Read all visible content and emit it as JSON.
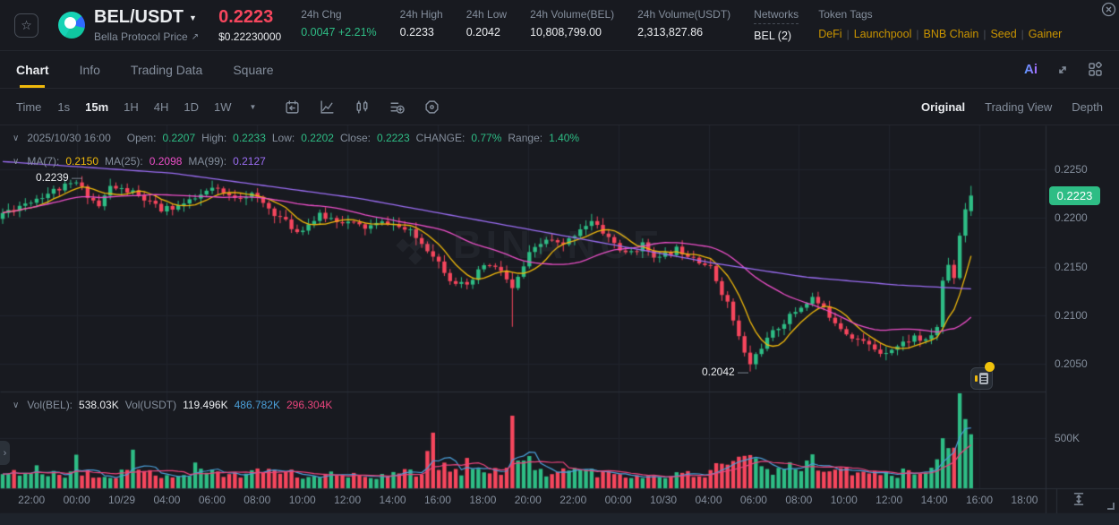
{
  "header": {
    "symbol": "BEL/USDT",
    "subtitle": "Bella Protocol Price",
    "subtitle_arrow": "↗",
    "price": "0.2223",
    "price_usd": "$0.22230000",
    "stats": [
      {
        "label": "24h Chg",
        "value": "0.0047 +2.21%",
        "color": "green"
      },
      {
        "label": "24h High",
        "value": "0.2233"
      },
      {
        "label": "24h Low",
        "value": "0.2042"
      },
      {
        "label": "24h Volume(BEL)",
        "value": "10,808,799.00"
      },
      {
        "label": "24h Volume(USDT)",
        "value": "2,313,827.86"
      },
      {
        "label": "Networks",
        "value": "BEL (2)",
        "dashed": true
      }
    ],
    "token_tags": {
      "label": "Token Tags",
      "tags": [
        "DeFi",
        "Launchpool",
        "BNB Chain",
        "Seed",
        "Gainer"
      ]
    }
  },
  "tabs": {
    "items": [
      "Chart",
      "Info",
      "Trading Data",
      "Square"
    ],
    "active": "Chart",
    "ai_label": "Ai"
  },
  "toolbar": {
    "time_label": "Time",
    "intervals": [
      "1s",
      "15m",
      "1H",
      "4H",
      "1D",
      "1W"
    ],
    "active_interval": "15m",
    "modes": [
      "Original",
      "Trading View",
      "Depth"
    ],
    "active_mode": "Original"
  },
  "ohlc_bar": {
    "date": "2025/10/30 16:00",
    "open_label": "Open:",
    "open": "0.2207",
    "high_label": "High:",
    "high": "0.2233",
    "low_label": "Low:",
    "low": "0.2202",
    "close_label": "Close:",
    "close": "0.2223",
    "change_label": "CHANGE:",
    "change": "0.77%",
    "range_label": "Range:",
    "range": "1.40%"
  },
  "ma_bar": {
    "ma7_label": "MA(7):",
    "ma7_value": "0.2150",
    "ma25_label": "MA(25):",
    "ma25_value": "0.2098",
    "ma99_label": "MA(99):",
    "ma99_value": "0.2127"
  },
  "vol_bar": {
    "bel_label": "Vol(BEL):",
    "bel_value": "538.03K",
    "usdt_label": "Vol(USDT)",
    "usdt_value": "119.496K",
    "ma5_value": "486.782K",
    "ma10_value": "296.304K"
  },
  "annotations": {
    "session_high": "0.2239",
    "session_low": "0.2042",
    "price_badge": "0.2223",
    "volume_gridline": "500K"
  },
  "watermark": {
    "text": "BINANCE"
  },
  "colors": {
    "up": "#2EBD85",
    "down": "#F6465D",
    "accent": "#F0B90B",
    "ma7": "#F0B90B",
    "ma25": "#EC4FC8",
    "ma99": "#9B6DF3",
    "vol_ma5": "#4A9FD8",
    "vol_ma10": "#E8447C",
    "grid": "#20242C",
    "divider": "#2B3139",
    "text_muted": "#848E9C"
  },
  "chart_data": {
    "type": "candlestick",
    "pair": "BEL/USDT",
    "interval": "15m",
    "current_candle": {
      "open": 0.2207,
      "high": 0.2233,
      "low": 0.2202,
      "close": 0.2223,
      "change_pct": 0.77,
      "range_pct": 1.4
    },
    "session": {
      "high": 0.2239,
      "low": 0.2042,
      "last": 0.2223
    },
    "moving_averages": {
      "ma7": 0.215,
      "ma25": 0.2098,
      "ma99": 0.2127
    },
    "volume_readout_k": {
      "bel": 538.03,
      "usdt": 119.496,
      "ma5": 486.782,
      "ma10": 296.304
    },
    "y_axis": {
      "ticks": [
        "0.2250",
        "0.2200",
        "0.2150",
        "0.2100",
        "0.2050"
      ],
      "tick_step": 0.005,
      "volume_tick": "500K",
      "volume_tick_value_k": 500
    },
    "x_axis": {
      "labels": [
        "22:00",
        "00:00",
        "10/29",
        "04:00",
        "06:00",
        "08:00",
        "10:00",
        "12:00",
        "14:00",
        "16:00",
        "18:00",
        "20:00",
        "22:00",
        "00:00",
        "10/30",
        "04:00",
        "06:00",
        "08:00",
        "10:00",
        "12:00",
        "14:00",
        "16:00",
        "18:00"
      ]
    },
    "candles": {
      "count": 172,
      "seed": 11,
      "price_anchors": [
        [
          0,
          0.2205
        ],
        [
          5,
          0.2218
        ],
        [
          9,
          0.2228
        ],
        [
          13,
          0.2236
        ],
        [
          17,
          0.2212
        ],
        [
          19,
          0.2232
        ],
        [
          23,
          0.2226
        ],
        [
          28,
          0.2208
        ],
        [
          33,
          0.2216
        ],
        [
          37,
          0.223
        ],
        [
          40,
          0.2222
        ],
        [
          44,
          0.2224
        ],
        [
          48,
          0.2205
        ],
        [
          52,
          0.2186
        ],
        [
          56,
          0.2202
        ],
        [
          60,
          0.2197
        ],
        [
          64,
          0.219
        ],
        [
          68,
          0.2196
        ],
        [
          72,
          0.2185
        ],
        [
          76,
          0.2163
        ],
        [
          79,
          0.2138
        ],
        [
          82,
          0.2128
        ],
        [
          85,
          0.2152
        ],
        [
          88,
          0.2146
        ],
        [
          90,
          0.2126
        ],
        [
          93,
          0.2162
        ],
        [
          96,
          0.2178
        ],
        [
          99,
          0.2171
        ],
        [
          102,
          0.219
        ],
        [
          104,
          0.2196
        ],
        [
          107,
          0.218
        ],
        [
          110,
          0.2162
        ],
        [
          113,
          0.2172
        ],
        [
          116,
          0.2158
        ],
        [
          119,
          0.2168
        ],
        [
          122,
          0.2161
        ],
        [
          125,
          0.2148
        ],
        [
          128,
          0.2112
        ],
        [
          131,
          0.206
        ],
        [
          132,
          0.205
        ],
        [
          134,
          0.2068
        ],
        [
          137,
          0.2088
        ],
        [
          140,
          0.2104
        ],
        [
          143,
          0.2118
        ],
        [
          146,
          0.21
        ],
        [
          149,
          0.2082
        ],
        [
          152,
          0.2072
        ],
        [
          155,
          0.2062
        ],
        [
          158,
          0.2068
        ],
        [
          161,
          0.2078
        ],
        [
          163,
          0.2072
        ],
        [
          165,
          0.2088
        ],
        [
          166,
          0.2135
        ],
        [
          167,
          0.2152
        ],
        [
          168,
          0.214
        ],
        [
          169,
          0.2183
        ],
        [
          170,
          0.221
        ],
        [
          171,
          0.2223
        ]
      ],
      "high_marker": {
        "index": 13,
        "price": 0.2239
      },
      "low_marker": {
        "index": 132,
        "price": 0.2042
      },
      "long_wick": {
        "index": 90,
        "low": 0.2088
      },
      "last": {
        "open": 0.2207,
        "high": 0.2233,
        "low": 0.2202,
        "close": 0.2223
      }
    },
    "ma99_anchors": [
      [
        0,
        0.2258
      ],
      [
        30,
        0.2246
      ],
      [
        63,
        0.222
      ],
      [
        95,
        0.2186
      ],
      [
        126,
        0.2153
      ],
      [
        142,
        0.2139
      ],
      [
        158,
        0.2131
      ],
      [
        171,
        0.2127
      ]
    ],
    "volume_anchors_k": [
      [
        0,
        150
      ],
      [
        6,
        180
      ],
      [
        10,
        160
      ],
      [
        12,
        140
      ],
      [
        13,
        300
      ],
      [
        14,
        160
      ],
      [
        18,
        140
      ],
      [
        22,
        150
      ],
      [
        23,
        330
      ],
      [
        24,
        170
      ],
      [
        28,
        140
      ],
      [
        33,
        140
      ],
      [
        34,
        330
      ],
      [
        35,
        160
      ],
      [
        40,
        140
      ],
      [
        46,
        170
      ],
      [
        48,
        190
      ],
      [
        52,
        130
      ],
      [
        56,
        120
      ],
      [
        60,
        140
      ],
      [
        66,
        130
      ],
      [
        70,
        160
      ],
      [
        74,
        150
      ],
      [
        76,
        640
      ],
      [
        77,
        230
      ],
      [
        79,
        200
      ],
      [
        81,
        170
      ],
      [
        82,
        300
      ],
      [
        83,
        180
      ],
      [
        86,
        150
      ],
      [
        89,
        180
      ],
      [
        90,
        760
      ],
      [
        91,
        240
      ],
      [
        93,
        280
      ],
      [
        94,
        180
      ],
      [
        97,
        160
      ],
      [
        100,
        190
      ],
      [
        103,
        170
      ],
      [
        107,
        140
      ],
      [
        112,
        125
      ],
      [
        118,
        135
      ],
      [
        124,
        150
      ],
      [
        127,
        220
      ],
      [
        128,
        290
      ],
      [
        130,
        320
      ],
      [
        131,
        430
      ],
      [
        133,
        240
      ],
      [
        136,
        180
      ],
      [
        139,
        200
      ],
      [
        142,
        220
      ],
      [
        143,
        330
      ],
      [
        144,
        210
      ],
      [
        147,
        180
      ],
      [
        151,
        150
      ],
      [
        155,
        130
      ],
      [
        158,
        140
      ],
      [
        161,
        180
      ],
      [
        163,
        200
      ],
      [
        165,
        260
      ],
      [
        166,
        450
      ],
      [
        167,
        430
      ],
      [
        168,
        390
      ],
      [
        169,
        900
      ],
      [
        170,
        620
      ],
      [
        171,
        538
      ]
    ]
  }
}
